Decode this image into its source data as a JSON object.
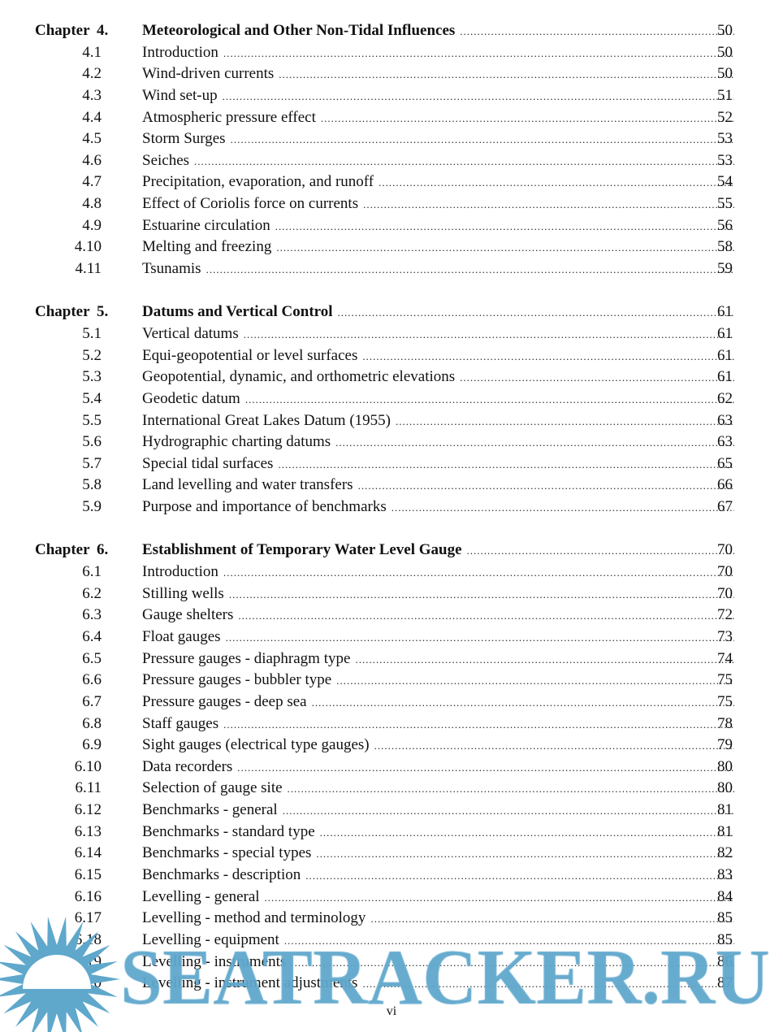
{
  "chapters": [
    {
      "label": "Chapter  4.",
      "title": "Meteorological and Other Non-Tidal Influences",
      "page": "50",
      "sections": [
        {
          "num": "4.1",
          "title": "Introduction",
          "page": "50"
        },
        {
          "num": "4.2",
          "title": "Wind-driven currents",
          "page": "50"
        },
        {
          "num": "4.3",
          "title": "Wind set-up",
          "page": "51"
        },
        {
          "num": "4.4",
          "title": "Atmospheric pressure effect",
          "page": "52"
        },
        {
          "num": "4.5",
          "title": "Storm Surges",
          "page": "53"
        },
        {
          "num": "4.6",
          "title": "Seiches",
          "page": "53"
        },
        {
          "num": "4.7",
          "title": "Precipitation, evaporation, and runoff",
          "page": "54"
        },
        {
          "num": "4.8",
          "title": "Effect of Coriolis force on currents",
          "page": "55"
        },
        {
          "num": "4.9",
          "title": "Estuarine circulation",
          "page": "56"
        },
        {
          "num": "4.10",
          "title": "Melting and freezing",
          "page": "58"
        },
        {
          "num": "4.11",
          "title": "Tsunamis",
          "page": "59"
        }
      ]
    },
    {
      "label": "Chapter  5.",
      "title": "Datums and Vertical Control",
      "page": "61",
      "sections": [
        {
          "num": "5.1",
          "title": "Vertical datums",
          "page": "61"
        },
        {
          "num": "5.2",
          "title": "Equi-geopotential or level surfaces",
          "page": "61"
        },
        {
          "num": "5.3",
          "title": "Geopotential, dynamic, and orthometric elevations",
          "page": "61"
        },
        {
          "num": "5.4",
          "title": "Geodetic datum",
          "page": "62"
        },
        {
          "num": "5.5",
          "title": "International Great Lakes Datum  (1955)",
          "page": "63"
        },
        {
          "num": "5.6",
          "title": "Hydrographic charting datums",
          "page": "63"
        },
        {
          "num": "5.7",
          "title": "Special tidal surfaces",
          "page": "65"
        },
        {
          "num": "5.8",
          "title": "Land levelling and water transfers",
          "page": "66"
        },
        {
          "num": "5.9",
          "title": "Purpose and importance of  benchmarks",
          "page": "67"
        }
      ]
    },
    {
      "label": "Chapter  6.",
      "title": "Establishment of Temporary Water Level Gauge",
      "page": "70",
      "sections": [
        {
          "num": "6.1",
          "title": "Introduction",
          "page": "70"
        },
        {
          "num": "6.2",
          "title": "Stilling wells",
          "page": "70"
        },
        {
          "num": "6.3",
          "title": "Gauge shelters",
          "page": "72"
        },
        {
          "num": "6.4",
          "title": "Float gauges",
          "page": "73"
        },
        {
          "num": "6.5",
          "title": "Pressure gauges - diaphragm type",
          "page": "74"
        },
        {
          "num": "6.6",
          "title": "Pressure gauges - bubbler type",
          "page": "75"
        },
        {
          "num": "6.7",
          "title": "Pressure gauges - deep sea",
          "page": "75"
        },
        {
          "num": "6.8",
          "title": "Staff gauges",
          "page": "78"
        },
        {
          "num": "6.9",
          "title": "Sight gauges (electrical type gauges)",
          "page": "79"
        },
        {
          "num": "6.10",
          "title": "Data recorders",
          "page": "80"
        },
        {
          "num": "6.11",
          "title": "Selection of gauge site",
          "page": "80"
        },
        {
          "num": "6.12",
          "title": "Benchmarks - general",
          "page": "81"
        },
        {
          "num": "6.13",
          "title": "Benchmarks - standard type",
          "page": "81"
        },
        {
          "num": "6.14",
          "title": "Benchmarks - special types",
          "page": "82"
        },
        {
          "num": "6.15",
          "title": "Benchmarks - description",
          "page": "83"
        },
        {
          "num": "6.16",
          "title": "Levelling - general",
          "page": "84"
        },
        {
          "num": "6.17",
          "title": "Levelling - method and terminology",
          "page": "85"
        },
        {
          "num": "6.18",
          "title": "Levelling - equipment",
          "page": "85"
        },
        {
          "num": "6.19",
          "title": "Levelling - instruments",
          "page": "86"
        },
        {
          "num": "6.20",
          "title": "Levelling - instrument adjustments",
          "page": "87"
        }
      ]
    }
  ],
  "folio": "vi",
  "watermark": {
    "text": "SEATRACKER.RU",
    "color": "#5fa8cc",
    "icon": "sun-icon"
  }
}
